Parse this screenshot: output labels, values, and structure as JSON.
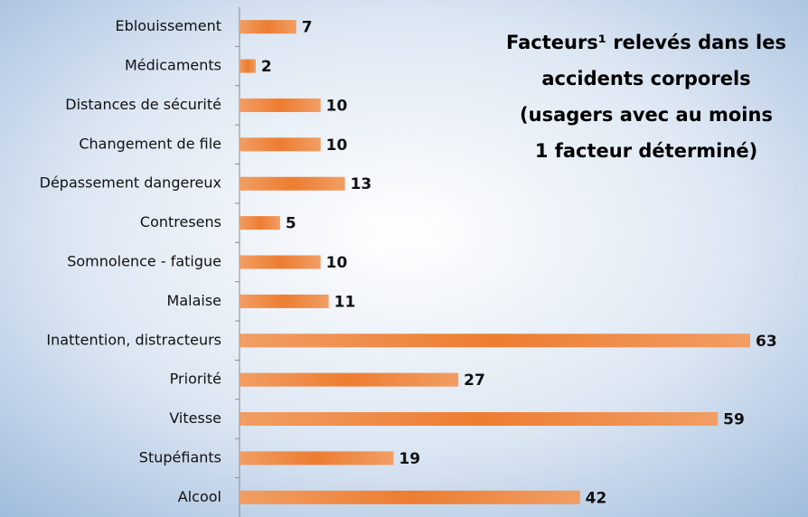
{
  "chart_data": {
    "type": "hbar",
    "title": [
      "Facteurs¹ relevés dans les",
      "accidents corporels",
      "(usagers avec au moins",
      "1 facteur déterminé)"
    ],
    "categories": [
      "Eblouissement",
      "Médicaments",
      "Distances de sécurité",
      "Changement de file",
      "Dépassement dangereux",
      "Contresens",
      "Somnolence - fatigue",
      "Malaise",
      "Inattention, distracteurs",
      "Priorité",
      "Vitesse",
      "Stupéfiants",
      "Alcool"
    ],
    "values": [
      7,
      2,
      10,
      10,
      13,
      5,
      10,
      11,
      63,
      27,
      59,
      19,
      42
    ],
    "color": "#ed7d31",
    "xlim": [
      0,
      63
    ]
  }
}
